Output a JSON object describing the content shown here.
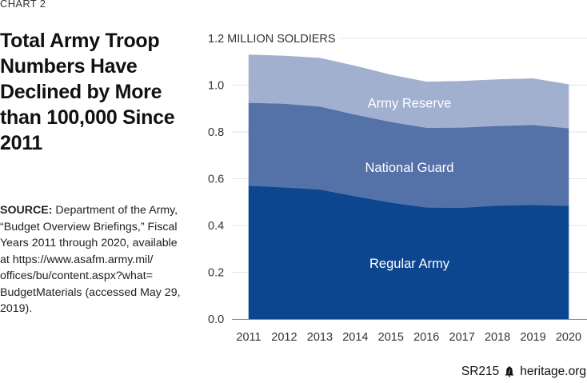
{
  "chart_label": "CHART 2",
  "title": "Total Army Troop Numbers Have Declined by More than 100,000 Since 2011",
  "source": {
    "prefix": "SOURCE:",
    "text": " Department of the Army, “Budget Overview Briefings,” Fiscal Years 2011 through 2020, available at https://www.asafm.army.mil/ offices/bu/content.aspx?what= BudgetMaterials (accessed May 29, 2019)."
  },
  "footer": {
    "report_id": "SR215",
    "icon": "liberty-bell-icon",
    "site": "heritage.org"
  },
  "chart_data": {
    "type": "area",
    "stacked": true,
    "title": "Total Army Troop Numbers Have Declined by More than 100,000 Since 2011",
    "xlabel": "",
    "ylabel": "MILLION SOLDIERS",
    "x": [
      "2011",
      "2012",
      "2013",
      "2014",
      "2015",
      "2016",
      "2017",
      "2018",
      "2019",
      "2020"
    ],
    "ylim": [
      0,
      1.2
    ],
    "yticks": [
      {
        "value": 0.0,
        "label": "0.0"
      },
      {
        "value": 0.2,
        "label": "0.2"
      },
      {
        "value": 0.4,
        "label": "0.4"
      },
      {
        "value": 0.6,
        "label": "0.6"
      },
      {
        "value": 0.8,
        "label": "0.8"
      },
      {
        "value": 1.0,
        "label": "1.0"
      },
      {
        "value": 1.2,
        "label": "1.2 MILLION SOLDIERS"
      }
    ],
    "grid": true,
    "legend": "inline-labels",
    "series": [
      {
        "name": "Regular Army",
        "color": "#0b468f",
        "values": [
          0.57,
          0.563,
          0.554,
          0.525,
          0.498,
          0.477,
          0.476,
          0.485,
          0.488,
          0.484
        ]
      },
      {
        "name": "National Guard",
        "color": "#5471a8",
        "values": [
          0.355,
          0.358,
          0.355,
          0.349,
          0.345,
          0.341,
          0.343,
          0.341,
          0.342,
          0.332
        ]
      },
      {
        "name": "Army Reserve",
        "color": "#a2b0d0",
        "values": [
          0.205,
          0.204,
          0.207,
          0.208,
          0.201,
          0.196,
          0.198,
          0.198,
          0.198,
          0.187
        ]
      }
    ]
  }
}
